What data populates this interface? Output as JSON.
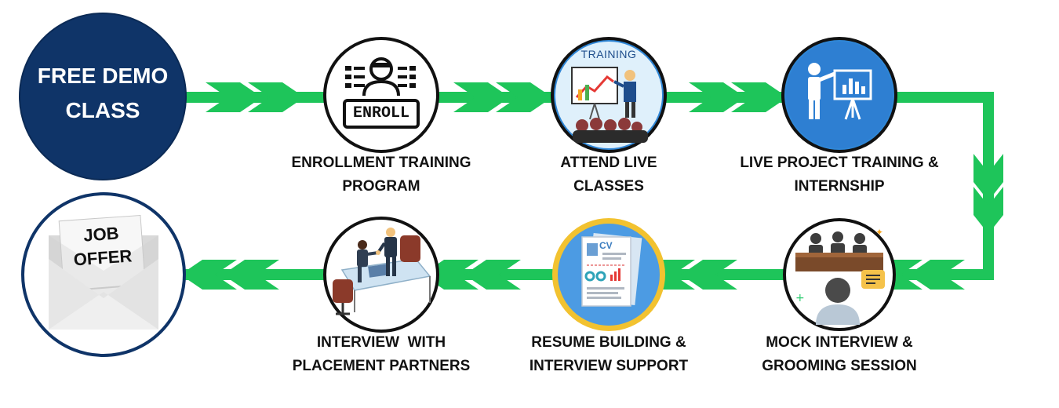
{
  "start": {
    "line1": "FREE DEMO",
    "line2": "CLASS"
  },
  "end": {
    "line1": "JOB",
    "line2": "OFFER"
  },
  "steps": [
    {
      "line1": "ENROLLMENT TRAINING",
      "line2": "PROGRAM",
      "icon": "enroll-icon",
      "icon_text": "ENROLL"
    },
    {
      "line1": "ATTEND LIVE",
      "line2": "CLASSES",
      "icon": "training-icon",
      "icon_text": "TRAINING"
    },
    {
      "line1": "LIVE PROJECT TRAINING &",
      "line2": "INTERNSHIP",
      "icon": "presentation-icon"
    },
    {
      "line1": "MOCK INTERVIEW &",
      "line2": "GROOMING SESSION",
      "icon": "mock-interview-icon"
    },
    {
      "line1": "RESUME BUILDING &",
      "line2": "INTERVIEW SUPPORT",
      "icon": "resume-icon",
      "icon_text": "CV"
    },
    {
      "line1": "INTERVIEW  WITH",
      "line2": "PLACEMENT PARTNERS",
      "icon": "handshake-icon"
    }
  ],
  "colors": {
    "flow_green": "#1ec55a",
    "navy": "#0f3468",
    "gold": "#f2c230",
    "sky_blue": "#3e8fd9",
    "ink": "#111111"
  }
}
